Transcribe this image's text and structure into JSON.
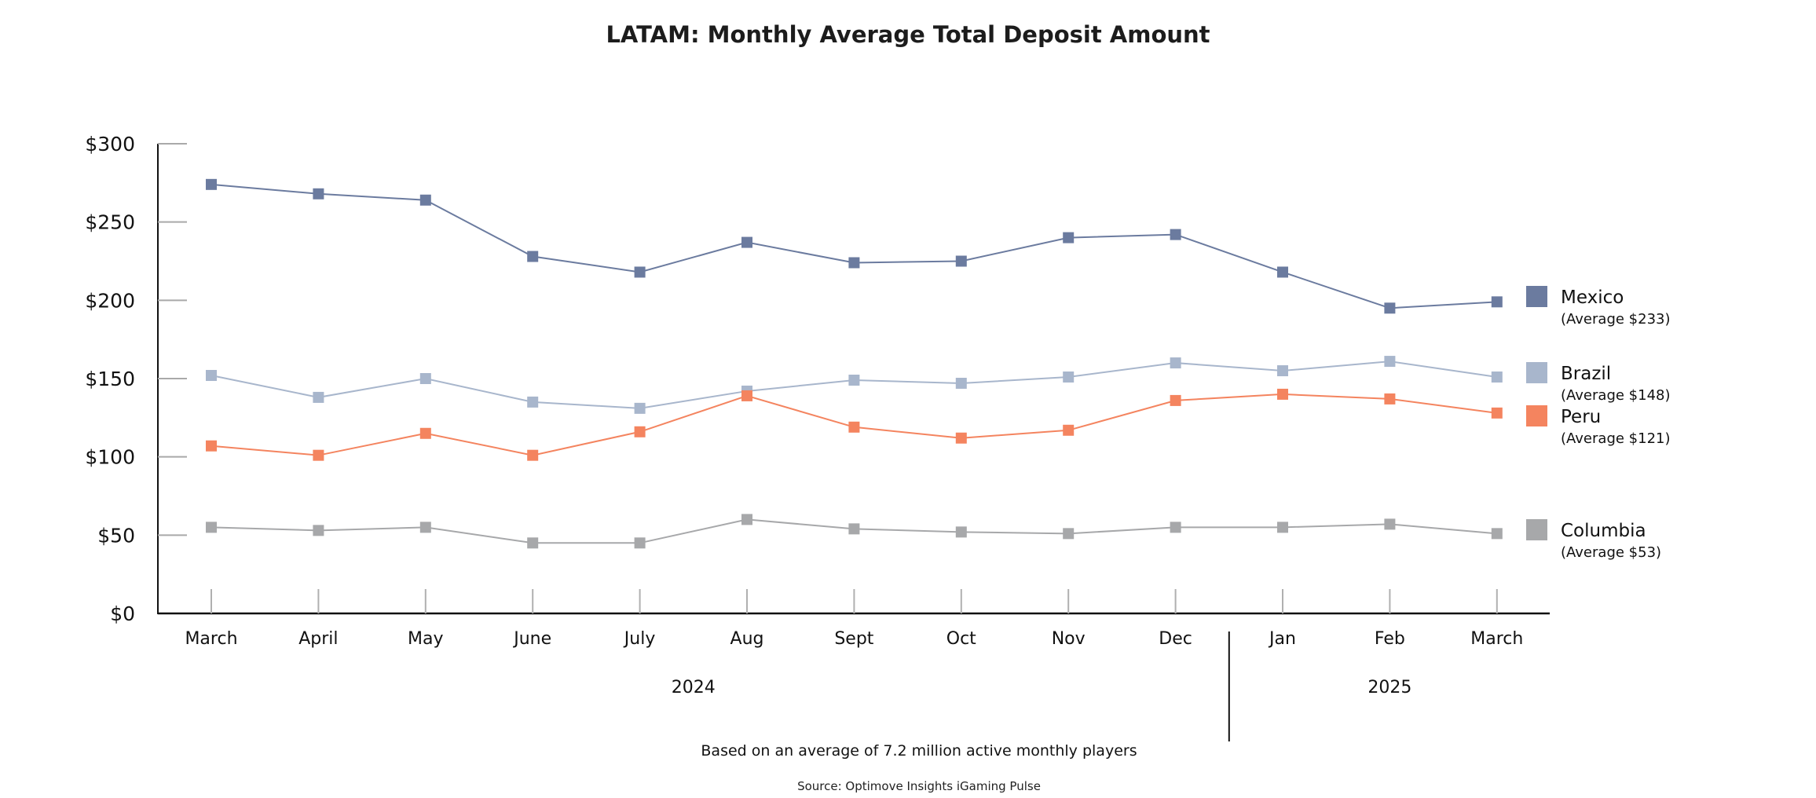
{
  "chart_data": {
    "type": "line",
    "title": "LATAM: Monthly Average Total Deposit Amount",
    "xlabel": "",
    "ylabel": "",
    "categories": [
      "March",
      "April",
      "May",
      "June",
      "July",
      "Aug",
      "Sept",
      "Oct",
      "Nov",
      "Dec",
      "Jan",
      "Feb",
      "March"
    ],
    "year_groups": [
      {
        "label": "2024",
        "from_index": 0,
        "to_index": 9
      },
      {
        "label": "2025",
        "from_index": 10,
        "to_index": 12
      }
    ],
    "ylim": [
      0,
      300
    ],
    "yticks": [
      0,
      50,
      100,
      150,
      200,
      250,
      300
    ],
    "ytick_labels": [
      "$0",
      "$50",
      "$100",
      "$150",
      "$200",
      "$250",
      "$300"
    ],
    "grid": false,
    "legend_position": "right",
    "marker": "square",
    "series": [
      {
        "name": "Mexico",
        "legend_sub": "(Average $233)",
        "color": "#6b7b9f",
        "values": [
          274,
          268,
          264,
          228,
          218,
          237,
          224,
          225,
          240,
          242,
          218,
          195,
          199
        ]
      },
      {
        "name": "Brazil",
        "legend_sub": "(Average $148)",
        "color": "#a8b6cc",
        "values": [
          152,
          138,
          150,
          135,
          131,
          142,
          149,
          147,
          151,
          160,
          155,
          161,
          151
        ]
      },
      {
        "name": "Peru",
        "legend_sub": "(Average $121)",
        "color": "#f4845f",
        "values": [
          107,
          101,
          115,
          101,
          116,
          139,
          119,
          112,
          117,
          136,
          140,
          137,
          128
        ]
      },
      {
        "name": "Columbia",
        "legend_sub": "(Average $53)",
        "color": "#a7a8aa",
        "values": [
          55,
          53,
          55,
          45,
          45,
          60,
          54,
          52,
          51,
          55,
          55,
          57,
          51
        ]
      }
    ],
    "annotations": [
      "Based on an average of 7.2 million active monthly players",
      "Source: Optimove Insights iGaming Pulse"
    ]
  },
  "footer": {
    "note": "Based on an average of 7.2 million active monthly players",
    "source": "Source: Optimove Insights iGaming Pulse"
  }
}
